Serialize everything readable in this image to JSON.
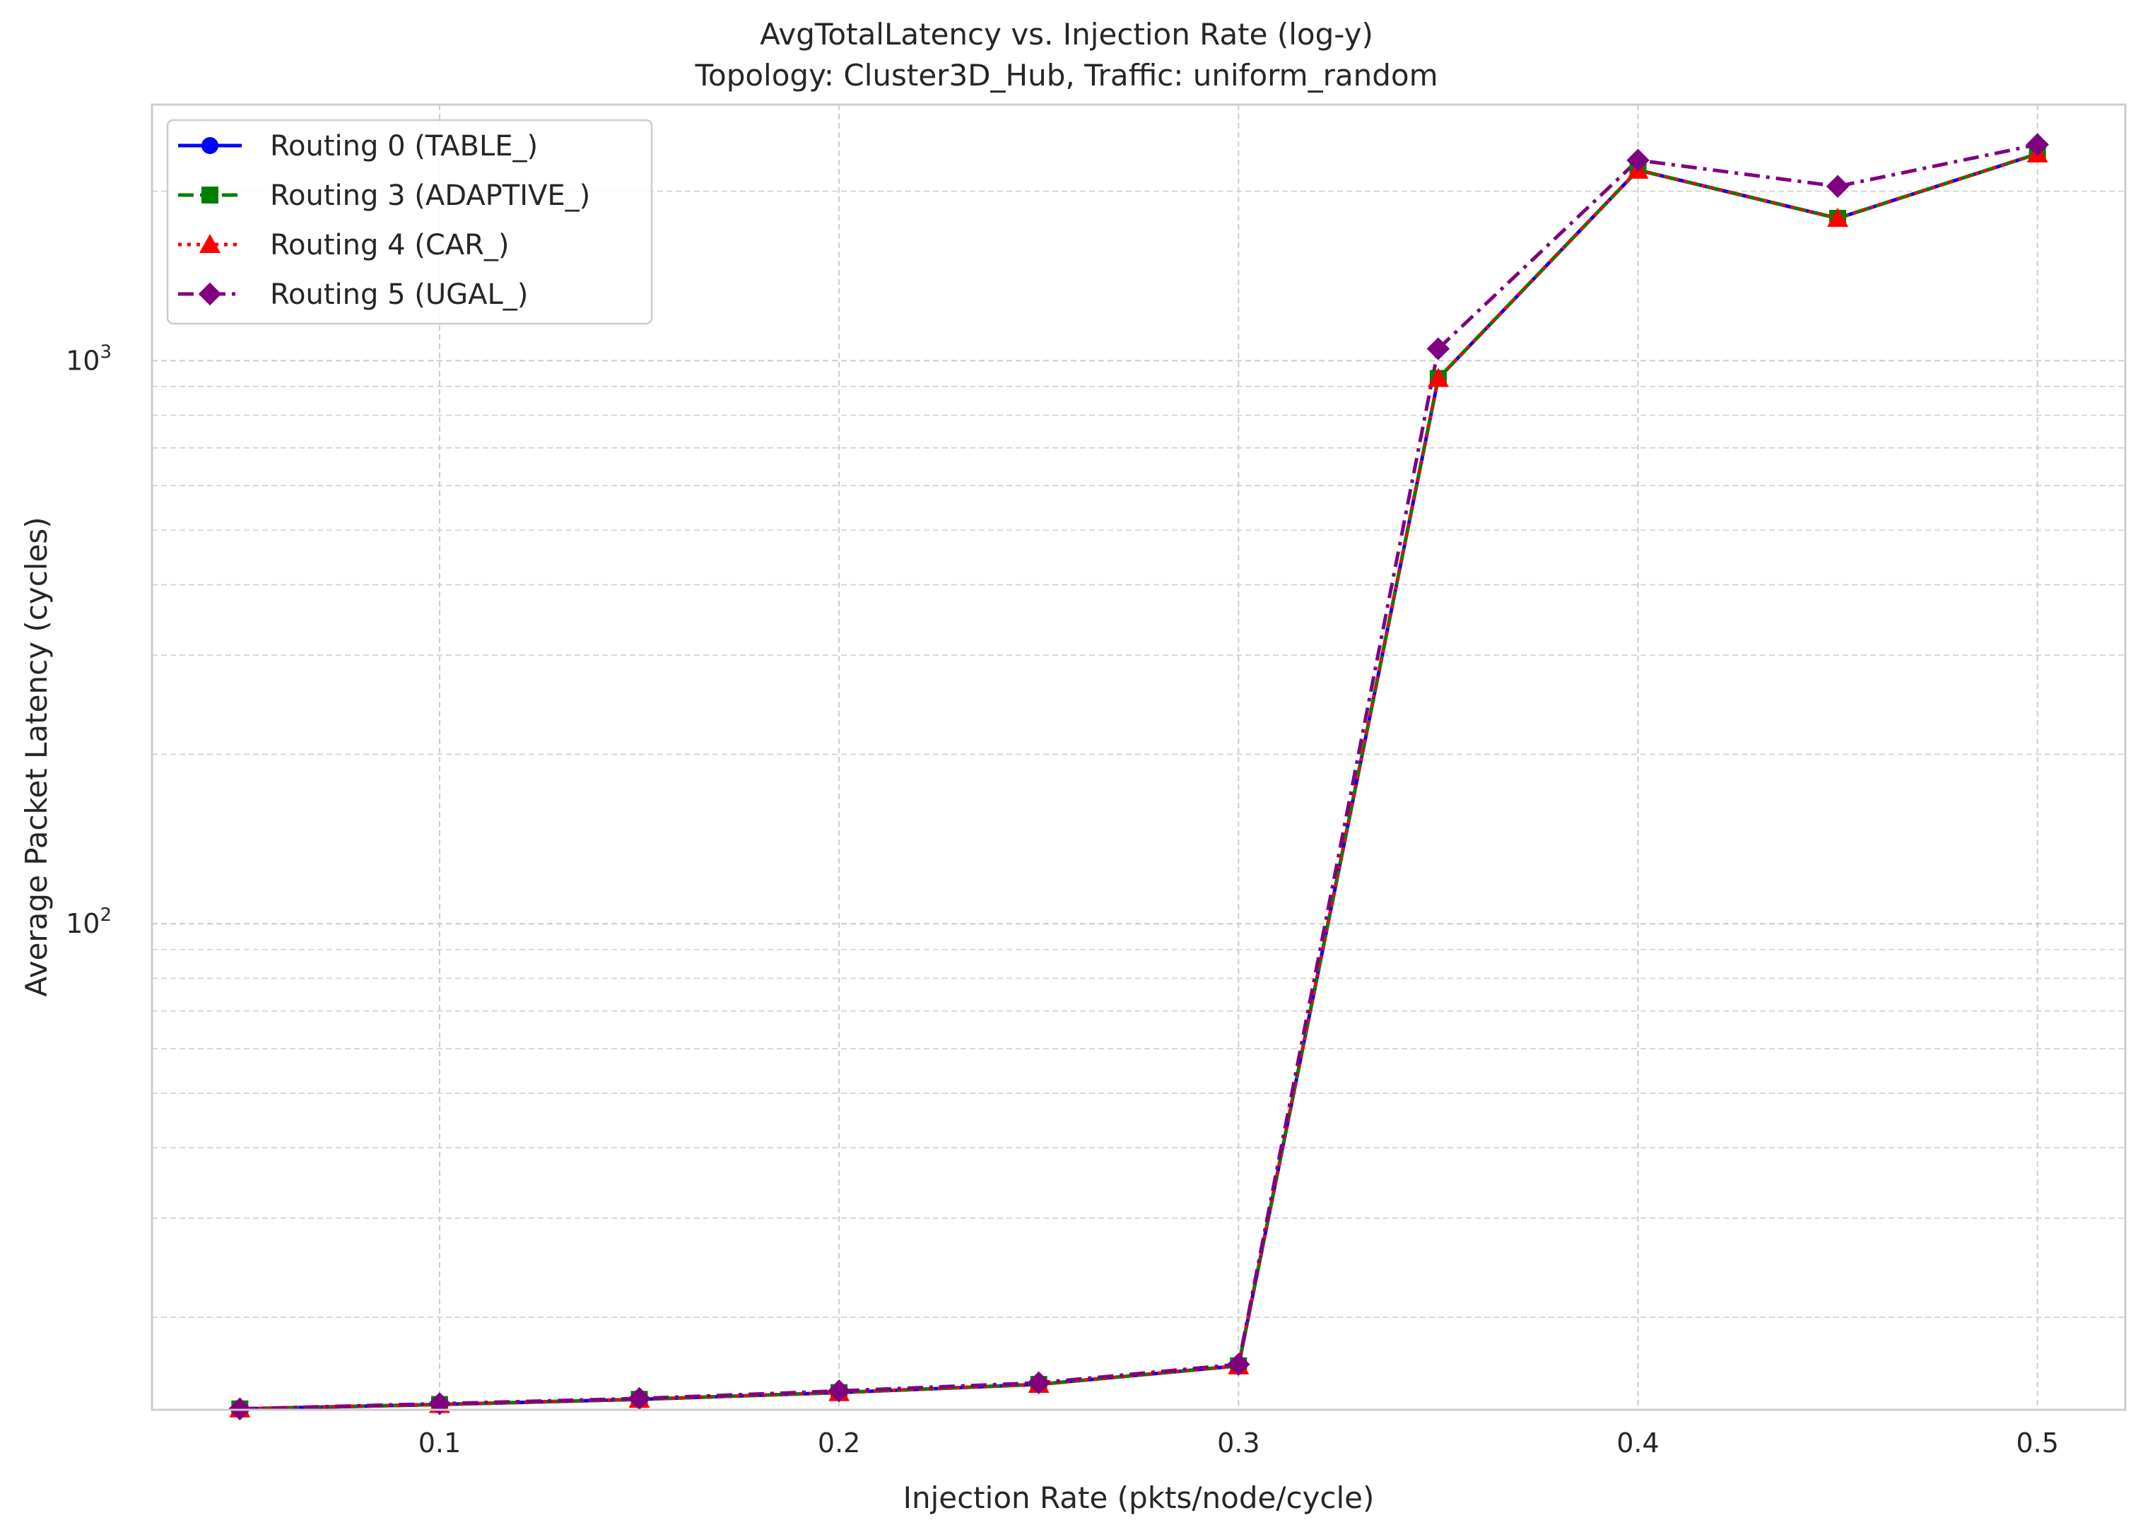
{
  "chart_data": {
    "type": "line",
    "title": "AvgTotalLatency vs. Injection Rate (log-y)",
    "subtitle": "Topology: Cluster3D_Hub, Traffic: uniform_random",
    "xlabel": "Injection Rate (pkts/node/cycle)",
    "ylabel": "Average Packet Latency (cycles)",
    "yscale": "log",
    "xlim": [
      0.028,
      0.522
    ],
    "ylim": [
      13.7,
      2850
    ],
    "grid": true,
    "legend_position": "top-left",
    "x_ticks": [
      {
        "value": 0.1,
        "label": "0.1"
      },
      {
        "value": 0.2,
        "label": "0.2"
      },
      {
        "value": 0.3,
        "label": "0.3"
      },
      {
        "value": 0.4,
        "label": "0.4"
      },
      {
        "value": 0.5,
        "label": "0.5"
      }
    ],
    "y_ticks": [
      {
        "value": 100,
        "base": "10",
        "exp": "2"
      },
      {
        "value": 1000,
        "base": "10",
        "exp": "3"
      }
    ],
    "x": [
      0.05,
      0.1,
      0.15,
      0.2,
      0.25,
      0.3,
      0.35,
      0.4,
      0.45,
      0.5
    ],
    "series": [
      {
        "name": "Routing 0 (TABLE_)",
        "color": "#0000ff",
        "dash": "solid",
        "marker": "circle",
        "values": [
          13.75,
          14.0,
          14.3,
          14.7,
          15.2,
          16.4,
          930,
          2180,
          1790,
          2330
        ]
      },
      {
        "name": "Routing 3 (ADAPTIVE_)",
        "color": "#008000",
        "dash": "dashed",
        "marker": "square",
        "values": [
          13.75,
          14.0,
          14.3,
          14.7,
          15.2,
          16.4,
          930,
          2180,
          1790,
          2330
        ]
      },
      {
        "name": "Routing 4 (CAR_)",
        "color": "#ff0000",
        "dash": "dotted",
        "marker": "triangle",
        "values": [
          13.75,
          14.0,
          14.3,
          14.7,
          15.2,
          16.4,
          930,
          2180,
          1790,
          2330
        ]
      },
      {
        "name": "Routing 5 (UGAL_)",
        "color": "#800080",
        "dash": "dashdot",
        "marker": "diamond",
        "values": [
          13.75,
          14.05,
          14.35,
          14.8,
          15.3,
          16.5,
          1050,
          2270,
          2040,
          2420
        ]
      }
    ]
  }
}
